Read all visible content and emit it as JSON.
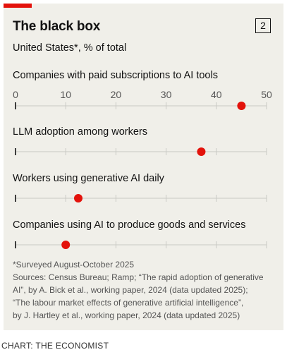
{
  "header": {
    "title": "The black box",
    "badge": "2",
    "subtitle": "United States*, % of total"
  },
  "chart_data": {
    "type": "scatter",
    "title": "The black box",
    "subtitle": "United States*, % of total",
    "xlim": [
      0,
      50
    ],
    "xticks": [
      0,
      10,
      20,
      30,
      40,
      50
    ],
    "grid": true,
    "series": [
      {
        "name": "Companies with paid subscriptions to AI tools",
        "value": 45
      },
      {
        "name": "LLM adoption among workers",
        "value": 37
      },
      {
        "name": "Workers using generative AI daily",
        "value": 12.5
      },
      {
        "name": "Companies using AI to produce goods and services",
        "value": 10
      }
    ],
    "colors": {
      "dot": "#e3120b",
      "grid": "#c9c9c4",
      "axis": "#121212"
    }
  },
  "footnotes": {
    "lines": [
      "*Surveyed August-October 2025",
      "Sources: Census Bureau; Ramp; “The rapid adoption of generative",
      "AI”, by A. Bick et al., working paper, 2024 (data updated 2025);",
      "“The labour market effects of generative artificial intelligence”,",
      "by J. Hartley et al., working paper, 2024 (data updated 2025)"
    ]
  },
  "credit": "CHART: THE ECONOMIST"
}
